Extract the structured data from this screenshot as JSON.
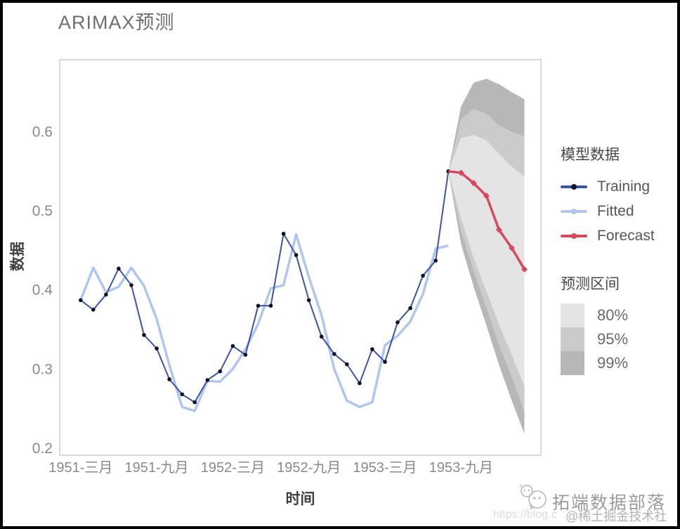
{
  "title": "ARIMAX预测",
  "axes": {
    "x_title": "时间",
    "y_title": "数据"
  },
  "legend": {
    "models_title": "模型数据",
    "intervals_title": "预测区间",
    "model_entries": [
      {
        "label": "Training",
        "color": "#3a55a4"
      },
      {
        "label": "Fitted",
        "color": "#afc7ee"
      },
      {
        "label": "Forecast",
        "color": "#d4495e"
      }
    ],
    "interval_entries": [
      {
        "label": "80%",
        "color": "#e4e4e4"
      },
      {
        "label": "95%",
        "color": "#cbcbcb"
      },
      {
        "label": "99%",
        "color": "#b7b7b7"
      }
    ]
  },
  "watermark": {
    "name": "拓端数据部落",
    "url": "https://blog.c",
    "community": "@稀土掘金技术社区",
    "logo_icon": "chat-bubbles-logo-icon"
  },
  "chart_data": {
    "type": "line",
    "title": "ARIMAX预测",
    "xlabel": "时间",
    "ylabel": "数据",
    "grid": false,
    "legend_position": "right",
    "time_axis_note": "months indexed from 1951-三月 = 0, monthly data",
    "x_ticks": {
      "months": [
        0,
        6,
        12,
        18,
        24,
        30
      ],
      "labels": [
        "1951-三月",
        "1951-九月",
        "1952-三月",
        "1952-九月",
        "1953-三月",
        "1953-九月"
      ]
    },
    "y_ticks": [
      0.2,
      0.3,
      0.4,
      0.5,
      0.6
    ],
    "ylim": [
      0.191,
      0.691
    ],
    "xlim_months": [
      -1.65,
      36.3
    ],
    "series": [
      {
        "name": "Training",
        "color": "#3a55a4",
        "marker": "black-dot",
        "start_month": 0,
        "values": [
          0.387,
          0.375,
          0.394,
          0.427,
          0.406,
          0.343,
          0.326,
          0.287,
          0.268,
          0.258,
          0.286,
          0.297,
          0.329,
          0.318,
          0.38,
          0.38,
          0.471,
          0.444,
          0.387,
          0.341,
          0.319,
          0.306,
          0.282,
          0.325,
          0.309,
          0.359,
          0.377,
          0.418,
          0.437,
          0.55
        ]
      },
      {
        "name": "Fitted",
        "color": "#afc7ee",
        "marker": "none",
        "start_month": 0,
        "values": [
          0.387,
          0.428,
          0.397,
          0.404,
          0.428,
          0.405,
          0.363,
          0.305,
          0.252,
          0.247,
          0.285,
          0.284,
          0.3,
          0.325,
          0.357,
          0.402,
          0.406,
          0.47,
          0.416,
          0.368,
          0.3,
          0.26,
          0.252,
          0.258,
          0.33,
          0.342,
          0.36,
          0.395,
          0.452,
          0.456
        ]
      },
      {
        "name": "Forecast",
        "color": "#d4495e",
        "marker": "red-diamond",
        "start_month": 29,
        "values": [
          0.55,
          0.548,
          0.535,
          0.519,
          0.476,
          0.453,
          0.426
        ]
      }
    ],
    "prediction_intervals": {
      "apex": {
        "month": 29,
        "value": 0.55
      },
      "months": [
        30,
        31,
        32,
        33,
        34,
        35
      ],
      "levels": [
        {
          "label": "99%",
          "color": "#b7b7b7",
          "lower": [
            0.458,
            0.404,
            0.355,
            0.305,
            0.26,
            0.218
          ],
          "upper": [
            0.632,
            0.662,
            0.667,
            0.66,
            0.65,
            0.641
          ]
        },
        {
          "label": "95%",
          "color": "#cbcbcb",
          "lower": [
            0.474,
            0.424,
            0.377,
            0.33,
            0.29,
            0.245
          ],
          "upper": [
            0.616,
            0.629,
            0.623,
            0.608,
            0.6,
            0.594
          ]
        },
        {
          "label": "80%",
          "color": "#e4e4e4",
          "lower": [
            0.49,
            0.44,
            0.398,
            0.356,
            0.318,
            0.278
          ],
          "upper": [
            0.592,
            0.596,
            0.589,
            0.572,
            0.556,
            0.543
          ]
        }
      ]
    }
  }
}
